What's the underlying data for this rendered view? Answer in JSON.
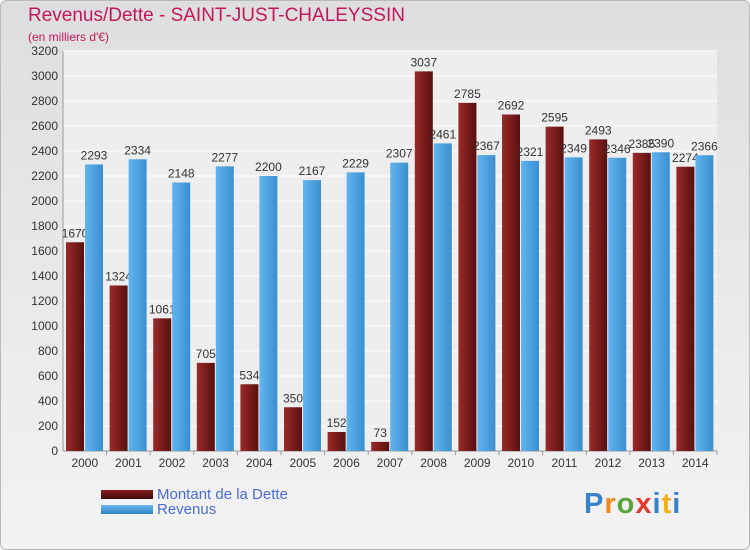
{
  "header": {
    "title": "Revenus/Dette - SAINT-JUST-CHALEYSSIN",
    "subtitle": "(en milliers d'€)"
  },
  "legend": {
    "debt": "Montant de la Dette",
    "revenue": "Revenus"
  },
  "logo": {
    "text": "Proxiti"
  },
  "colors": {
    "debt": "#7a1c1c",
    "revenue": "#4aa3e3",
    "title": "#c2185b",
    "legend_text": "#4a6cd4"
  },
  "chart_data": {
    "type": "bar",
    "title": "Revenus/Dette - SAINT-JUST-CHALEYSSIN",
    "subtitle": "(en milliers d'€)",
    "categories": [
      "2000",
      "2001",
      "2002",
      "2003",
      "2004",
      "2005",
      "2006",
      "2007",
      "2008",
      "2009",
      "2010",
      "2011",
      "2012",
      "2013",
      "2014"
    ],
    "series": [
      {
        "name": "Montant de la Dette",
        "color": "#7a1c1c",
        "values": [
          1670,
          1324,
          1061,
          705,
          534,
          350,
          152,
          73,
          3037,
          2785,
          2692,
          2595,
          2493,
          2385,
          2274
        ],
        "labels": [
          "1670",
          "1324",
          "1061",
          "705",
          "534",
          "350",
          "152",
          "73",
          "3037",
          "2785",
          "2692",
          "2595",
          "2493",
          "2385",
          "2274"
        ]
      },
      {
        "name": "Revenus",
        "color": "#4aa3e3",
        "values": [
          2293,
          2334,
          2148,
          2277,
          2200,
          2167,
          2229,
          2307,
          2461,
          2367,
          2321,
          2349,
          2346,
          2390,
          2366
        ],
        "labels": [
          "2293",
          "2334",
          "2148",
          "2277",
          "2200",
          "2167",
          "2229",
          "2307",
          "2461",
          "2367",
          "2321",
          "2349",
          "2346",
          "2390",
          "2366"
        ]
      }
    ],
    "ylim": [
      0,
      3200
    ],
    "yticks": [
      0,
      200,
      400,
      600,
      800,
      1000,
      1200,
      1400,
      1600,
      1800,
      2000,
      2200,
      2400,
      2600,
      2800,
      3000,
      3200
    ],
    "grid": true,
    "legend_position": "bottom-left"
  }
}
